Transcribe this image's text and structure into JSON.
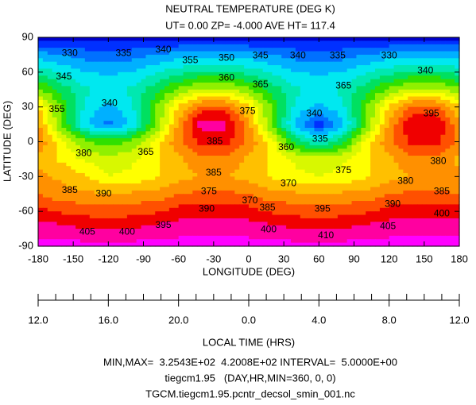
{
  "chart_data": {
    "type": "contour",
    "title": "NEUTRAL TEMPERATURE (DEG K)",
    "subtitle": "UT= 0.00 ZP= -4.000 AVE HT= 117.4",
    "xlabel": "LONGITUDE (DEG)",
    "ylabel": "LATITUDE (DEG)",
    "x2label": "LOCAL TIME (HRS)",
    "footer": [
      "MIN,MAX=  3.2543E+02  4.2008E+02 INTERVAL=  5.0000E+00",
      "tiegcm1.95   (DAY,HR,MIN=360, 0, 0)",
      "TGCM.tiegcm1.95.pcntr_decsol_smin_001.nc"
    ],
    "xlim": [
      -180,
      180
    ],
    "ylim": [
      -90,
      90
    ],
    "xticks": [
      -180,
      -150,
      -120,
      -90,
      -60,
      -30,
      0,
      30,
      60,
      90,
      120,
      150,
      180
    ],
    "yticks": [
      -90,
      -60,
      -30,
      0,
      30,
      60,
      90
    ],
    "x2ticks": [
      {
        "value": -180,
        "label": "12.0"
      },
      {
        "value": -120,
        "label": "16.0"
      },
      {
        "value": -60,
        "label": "20.0"
      },
      {
        "value": 0,
        "label": "0.0"
      },
      {
        "value": 60,
        "label": "4.0"
      },
      {
        "value": 120,
        "label": "8.0"
      },
      {
        "value": 180,
        "label": "12.0"
      }
    ],
    "x2minor_ticks": [
      -180,
      -165,
      -150,
      -135,
      -120,
      -105,
      -90,
      -75,
      -60,
      -45,
      -30,
      -15,
      0,
      15,
      30,
      45,
      60,
      75,
      90,
      105,
      120,
      135,
      150,
      165,
      180
    ],
    "levels": [
      325,
      330,
      335,
      340,
      345,
      350,
      355,
      360,
      365,
      370,
      375,
      380,
      385,
      390,
      395,
      400,
      405,
      410
    ],
    "colors": [
      "#0000c8",
      "#0030ff",
      "#0070ff",
      "#00b0ff",
      "#00e8f0",
      "#00e8b0",
      "#00e060",
      "#30e000",
      "#90f000",
      "#d8f800",
      "#ffff00",
      "#ffc000",
      "#ff9000",
      "#ff5000",
      "#f00000",
      "#ff00a0",
      "#ff00ff"
    ],
    "x": [
      -180,
      -160,
      -140,
      -120,
      -100,
      -80,
      -60,
      -40,
      -20,
      0,
      20,
      40,
      60,
      80,
      100,
      120,
      140,
      160,
      180
    ],
    "y": [
      90,
      75,
      60,
      45,
      30,
      15,
      0,
      -15,
      -30,
      -45,
      -60,
      -75,
      -90
    ],
    "z": [
      [
        328,
        328,
        328,
        328,
        328,
        328,
        328,
        328,
        328,
        328,
        328,
        328,
        328,
        328,
        328,
        328,
        328,
        328,
        328
      ],
      [
        342,
        340,
        338,
        337,
        338,
        340,
        342,
        343,
        343,
        342,
        340,
        338,
        337,
        338,
        340,
        342,
        343,
        343,
        342
      ],
      [
        353,
        349,
        345,
        344,
        345,
        349,
        353,
        356,
        356,
        353,
        349,
        345,
        344,
        345,
        349,
        353,
        356,
        356,
        353
      ],
      [
        366,
        358,
        351,
        348,
        351,
        358,
        366,
        371,
        371,
        366,
        358,
        351,
        348,
        351,
        358,
        366,
        371,
        371,
        366
      ],
      [
        381,
        364,
        349,
        343,
        349,
        364,
        381,
        392,
        392,
        381,
        364,
        349,
        343,
        349,
        364,
        381,
        392,
        392,
        381
      ],
      [
        386,
        364,
        346,
        338,
        346,
        364,
        386,
        403,
        402,
        386,
        364,
        343,
        332,
        343,
        364,
        386,
        400,
        400,
        386
      ],
      [
        389,
        377,
        366,
        362,
        366,
        377,
        389,
        397,
        397,
        389,
        377,
        358,
        350,
        358,
        377,
        389,
        397,
        397,
        389
      ],
      [
        384,
        379,
        374,
        372,
        374,
        379,
        384,
        388,
        388,
        384,
        379,
        374,
        372,
        374,
        379,
        384,
        388,
        388,
        384
      ],
      [
        386,
        384,
        381,
        375,
        376,
        379,
        383,
        385,
        385,
        383,
        379,
        376,
        375,
        376,
        379,
        383,
        385,
        385,
        386
      ],
      [
        390,
        387,
        386,
        385,
        386,
        387,
        390,
        391,
        391,
        390,
        387,
        386,
        385,
        386,
        387,
        390,
        391,
        391,
        390
      ],
      [
        397,
        394,
        393,
        392,
        393,
        394,
        397,
        398,
        398,
        397,
        394,
        393,
        392,
        393,
        394,
        397,
        398,
        398,
        397
      ],
      [
        403,
        402,
        400,
        400,
        400,
        402,
        403,
        404,
        404,
        403,
        402,
        400,
        400,
        400,
        402,
        403,
        404,
        404,
        403
      ],
      [
        407,
        407,
        407,
        407,
        407,
        407,
        407,
        407,
        407,
        407,
        407,
        407,
        407,
        407,
        407,
        407,
        407,
        407,
        407
      ]
    ],
    "contour_labels": [
      {
        "label": "330",
        "lon": -153,
        "lat": 76
      },
      {
        "label": "335",
        "lon": -107,
        "lat": 76
      },
      {
        "label": "340",
        "lon": -73,
        "lat": 79
      },
      {
        "label": "345",
        "lon": 10,
        "lat": 74
      },
      {
        "label": "340",
        "lon": 42,
        "lat": 74
      },
      {
        "label": "335",
        "lon": 76,
        "lat": 74
      },
      {
        "label": "330",
        "lon": 120,
        "lat": 74
      },
      {
        "label": "355",
        "lon": -50,
        "lat": 70
      },
      {
        "label": "350",
        "lon": -19,
        "lat": 72
      },
      {
        "label": "345",
        "lon": -158,
        "lat": 56
      },
      {
        "label": "360",
        "lon": -19,
        "lat": 55
      },
      {
        "label": "365",
        "lon": 10,
        "lat": 49
      },
      {
        "label": "365",
        "lon": 81,
        "lat": 48
      },
      {
        "label": "340",
        "lon": 151,
        "lat": 61
      },
      {
        "label": "355",
        "lon": -164,
        "lat": 28
      },
      {
        "label": "340",
        "lon": -119,
        "lat": 33
      },
      {
        "label": "375",
        "lon": -1,
        "lat": 26
      },
      {
        "label": "340",
        "lon": 56,
        "lat": 24
      },
      {
        "label": "395",
        "lon": 156,
        "lat": 24
      },
      {
        "label": "385",
        "lon": -29,
        "lat": 0
      },
      {
        "label": "335",
        "lon": 61,
        "lat": 2
      },
      {
        "label": "360",
        "lon": 32,
        "lat": -5
      },
      {
        "label": "380",
        "lon": -141,
        "lat": -10
      },
      {
        "label": "365",
        "lon": -88,
        "lat": -9
      },
      {
        "label": "385",
        "lon": -30,
        "lat": -27
      },
      {
        "label": "380",
        "lon": 162,
        "lat": -17
      },
      {
        "label": "385",
        "lon": -153,
        "lat": -42
      },
      {
        "label": "375",
        "lon": -34,
        "lat": -43
      },
      {
        "label": "370",
        "lon": 1,
        "lat": -51
      },
      {
        "label": "370",
        "lon": 34,
        "lat": -36
      },
      {
        "label": "375",
        "lon": 81,
        "lat": -25
      },
      {
        "label": "380",
        "lon": 134,
        "lat": -34
      },
      {
        "label": "385",
        "lon": 165,
        "lat": -43
      },
      {
        "label": "390",
        "lon": -124,
        "lat": -45
      },
      {
        "label": "390",
        "lon": -36,
        "lat": -58
      },
      {
        "label": "385",
        "lon": 16,
        "lat": -57
      },
      {
        "label": "395",
        "lon": 63,
        "lat": -58
      },
      {
        "label": "390",
        "lon": 123,
        "lat": -54
      },
      {
        "label": "400",
        "lon": 165,
        "lat": -62
      },
      {
        "label": "395",
        "lon": -73,
        "lat": -72
      },
      {
        "label": "405",
        "lon": -138,
        "lat": -78
      },
      {
        "label": "400",
        "lon": -104,
        "lat": -78
      },
      {
        "label": "400",
        "lon": 17,
        "lat": -76
      },
      {
        "label": "410",
        "lon": 66,
        "lat": -81
      },
      {
        "label": "405",
        "lon": 119,
        "lat": -73
      }
    ]
  }
}
